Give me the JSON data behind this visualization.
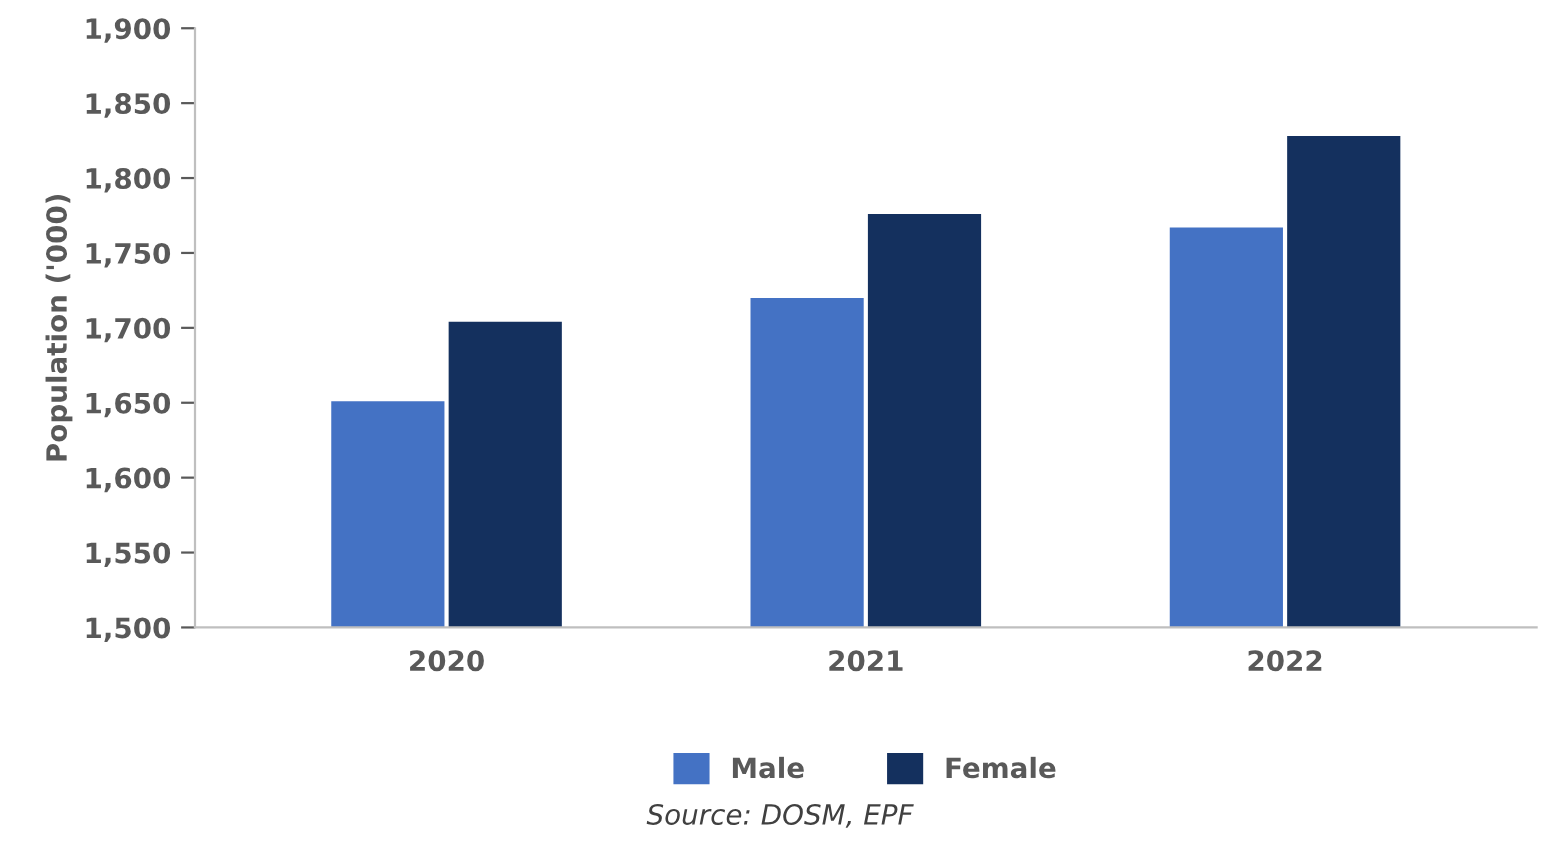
{
  "chart_data": {
    "type": "bar",
    "ylabel": "Population ('000)",
    "categories": [
      "2020",
      "2021",
      "2022"
    ],
    "series": [
      {
        "name": "Male",
        "color": "#4472c4",
        "values": [
          1651,
          1720,
          1767
        ]
      },
      {
        "name": "Female",
        "color": "#14305e",
        "values": [
          1704,
          1776,
          1828
        ]
      }
    ],
    "ylim": [
      1500,
      1900
    ],
    "yticks": [
      {
        "value": 1500,
        "label": "1,500"
      },
      {
        "value": 1550,
        "label": "1,550"
      },
      {
        "value": 1600,
        "label": "1,600"
      },
      {
        "value": 1650,
        "label": "1,650"
      },
      {
        "value": 1700,
        "label": "1,700"
      },
      {
        "value": 1750,
        "label": "1,750"
      },
      {
        "value": 1800,
        "label": "1,800"
      },
      {
        "value": 1850,
        "label": "1,850"
      },
      {
        "value": 1900,
        "label": "1,900"
      }
    ],
    "grid": false,
    "legend": "bottom",
    "annotations": [
      "Source: DOSM, EPF"
    ]
  }
}
